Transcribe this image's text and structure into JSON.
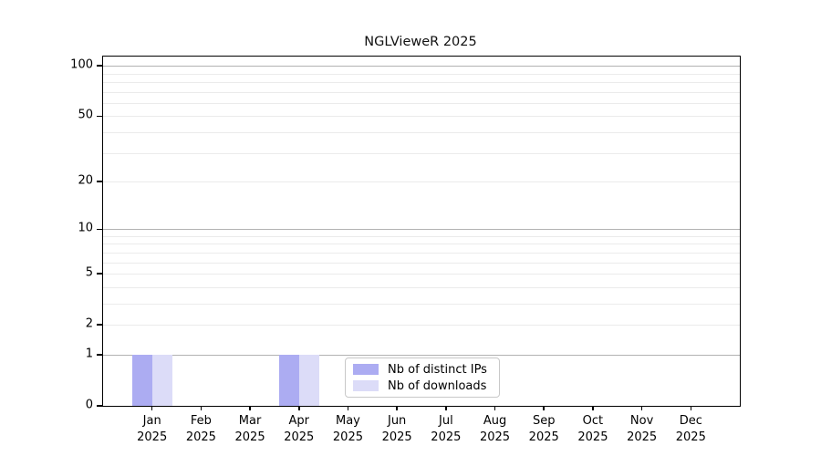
{
  "chart_data": {
    "type": "bar",
    "title": "NGLVieweR 2025",
    "categories": [
      "Jan",
      "Feb",
      "Mar",
      "Apr",
      "May",
      "Jun",
      "Jul",
      "Aug",
      "Sep",
      "Oct",
      "Nov",
      "Dec"
    ],
    "x_tick_second_line": "2025",
    "series": [
      {
        "name": "Nb of distinct IPs",
        "color": "#acacf2",
        "values": [
          1,
          0,
          0,
          1,
          0,
          0,
          0,
          0,
          0,
          0,
          0,
          0
        ]
      },
      {
        "name": "Nb of downloads",
        "color": "#dcdcf8",
        "values": [
          1,
          0,
          0,
          1,
          0,
          0,
          0,
          0,
          0,
          0,
          0,
          0
        ]
      }
    ],
    "xlabel": "",
    "ylabel": "",
    "y_axis": {
      "scale": "log1p",
      "tick_labels": [
        0,
        1,
        2,
        5,
        10,
        20,
        50,
        100
      ],
      "major_gridlines": [
        1,
        10,
        100
      ],
      "minor_gridlines": [
        2,
        3,
        4,
        5,
        6,
        7,
        8,
        9,
        20,
        30,
        40,
        50,
        60,
        70,
        80,
        90
      ],
      "ylim": [
        0,
        113
      ],
      "grid": "on"
    },
    "legend": {
      "position": "inside-bottom-center",
      "entries": [
        "Nb of distinct IPs",
        "Nb of downloads"
      ]
    },
    "colors": {
      "bar_distinct_ips": "#acacf2",
      "bar_downloads": "#dcdcf8",
      "major_gridline": "#b2b2b2",
      "minor_gridline": "#ebebeb",
      "axis": "#000000",
      "background": "#ffffff"
    }
  }
}
